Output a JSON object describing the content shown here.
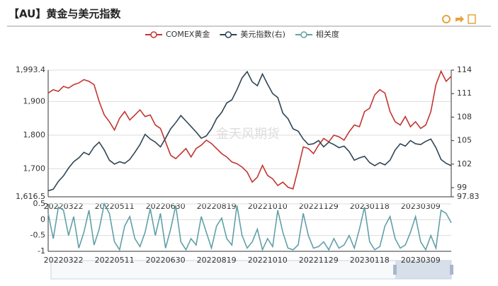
{
  "chart_data": [
    {
      "type": "line",
      "title": "【AU】黄金与美元指数",
      "watermark": "金天风期货",
      "categories": [
        null,
        null,
        null,
        "20220322",
        null,
        null,
        null,
        null,
        null,
        null,
        null,
        null,
        null,
        "20220511",
        null,
        null,
        null,
        null,
        null,
        null,
        null,
        null,
        null,
        "20220630",
        null,
        null,
        null,
        null,
        null,
        null,
        null,
        null,
        null,
        "20220819",
        null,
        null,
        null,
        null,
        null,
        null,
        null,
        null,
        null,
        "20221010",
        null,
        null,
        null,
        null,
        null,
        null,
        null,
        null,
        null,
        "20221129",
        null,
        null,
        null,
        null,
        null,
        null,
        null,
        null,
        null,
        "20230118",
        null,
        null,
        null,
        null,
        null,
        null,
        null,
        null,
        null,
        "20230309",
        null,
        null,
        null,
        null,
        null,
        null
      ],
      "ylim": [
        1616.5,
        1993.4
      ],
      "yticks": [
        {
          "value": 1616.5,
          "label": "1,616.5"
        },
        {
          "value": 1700,
          "label": "1,700"
        },
        {
          "value": 1800,
          "label": "1,800"
        },
        {
          "value": 1900,
          "label": "1,900"
        },
        {
          "value": 1993.4,
          "label": "1,993.4"
        }
      ],
      "y2lim": [
        97.83,
        114
      ],
      "y2ticks": [
        97.83,
        99,
        102,
        105,
        108,
        111,
        114
      ],
      "grid": true,
      "series": [
        {
          "name": "COMEX黄金",
          "color": "#c23531",
          "values": [
            1925,
            1935,
            1930,
            1945,
            1940,
            1950,
            1955,
            1965,
            1960,
            1950,
            1900,
            1860,
            1840,
            1815,
            1850,
            1870,
            1845,
            1860,
            1875,
            1855,
            1860,
            1830,
            1820,
            1780,
            1740,
            1730,
            1745,
            1760,
            1735,
            1760,
            1770,
            1785,
            1775,
            1760,
            1745,
            1735,
            1720,
            1715,
            1705,
            1690,
            1660,
            1675,
            1710,
            1680,
            1670,
            1650,
            1660,
            1645,
            1640,
            1700,
            1765,
            1760,
            1745,
            1770,
            1790,
            1780,
            1800,
            1795,
            1785,
            1810,
            1830,
            1825,
            1870,
            1880,
            1920,
            1935,
            1925,
            1870,
            1840,
            1830,
            1855,
            1825,
            1840,
            1820,
            1830,
            1870,
            1950,
            1990,
            1960,
            1975
          ]
        },
        {
          "name": "美元指数(右)",
          "color": "#2f4554",
          "axis": "y2",
          "values": [
            98.6,
            98.8,
            99.8,
            100.5,
            101.5,
            102.3,
            102.8,
            103.5,
            103.2,
            104.2,
            104.8,
            103.8,
            102.5,
            102,
            102.3,
            102.1,
            102.6,
            103.5,
            104.5,
            105.8,
            105.2,
            104.8,
            104.2,
            105.3,
            106.5,
            107.3,
            108.2,
            107.5,
            106.8,
            106.1,
            105.3,
            105.6,
            106.5,
            107.8,
            108.6,
            109.8,
            110.2,
            111.5,
            113,
            113.8,
            112.5,
            112,
            113.5,
            112.2,
            111,
            110.5,
            108.5,
            107.8,
            106.5,
            106.2,
            105.2,
            104.5,
            104.6,
            105,
            104.2,
            104.8,
            104.5,
            104.1,
            104.3,
            103.6,
            102.5,
            102.8,
            103,
            102.2,
            101.8,
            102.2,
            101.9,
            102.5,
            103.8,
            104.6,
            104.3,
            105,
            104.6,
            104.5,
            104.9,
            105.2,
            104.1,
            102.6,
            102.1,
            101.8
          ]
        }
      ]
    },
    {
      "type": "line",
      "categories": [
        null,
        null,
        null,
        "20220322",
        null,
        null,
        null,
        null,
        null,
        null,
        null,
        null,
        null,
        "20220511",
        null,
        null,
        null,
        null,
        null,
        null,
        null,
        null,
        null,
        "20220630",
        null,
        null,
        null,
        null,
        null,
        null,
        null,
        null,
        null,
        "20220819",
        null,
        null,
        null,
        null,
        null,
        null,
        null,
        null,
        null,
        "20221010",
        null,
        null,
        null,
        null,
        null,
        null,
        null,
        null,
        null,
        "20221129",
        null,
        null,
        null,
        null,
        null,
        null,
        null,
        null,
        null,
        "20230118",
        null,
        null,
        null,
        null,
        null,
        null,
        null,
        null,
        null,
        "20230309",
        null,
        null,
        null,
        null,
        null,
        null
      ],
      "ylim": [
        -1,
        0.5
      ],
      "yticks": [
        -1,
        -0.5,
        0,
        0.5
      ],
      "grid": true,
      "series": [
        {
          "name": "相关度",
          "color": "#61a0a8",
          "values": [
            0.2,
            -0.6,
            0.4,
            0.3,
            -0.5,
            0.1,
            -0.9,
            -0.4,
            0.3,
            -0.8,
            -0.3,
            0.5,
            0.2,
            -0.7,
            -0.95,
            -0.2,
            0.1,
            -0.6,
            -0.85,
            -0.4,
            0.35,
            -0.5,
            0.2,
            -0.9,
            -0.3,
            0.45,
            -0.7,
            -0.95,
            -0.6,
            -0.8,
            0.1,
            -0.4,
            -0.9,
            -0.2,
            0.05,
            -0.6,
            -0.8,
            0.45,
            -0.5,
            -0.9,
            -0.7,
            -0.3,
            -0.95,
            -0.6,
            -0.85,
            0.3,
            -0.4,
            -0.9,
            -0.95,
            -0.8,
            0.2,
            -0.5,
            -0.9,
            -0.85,
            -0.7,
            -0.95,
            -0.6,
            -0.9,
            -0.8,
            -0.5,
            -0.9,
            -0.3,
            0.4,
            -0.7,
            -0.95,
            -0.85,
            -0.2,
            0.1,
            -0.6,
            -0.9,
            -0.8,
            -0.4,
            0.1,
            -0.7,
            -0.95,
            -0.5,
            -0.9,
            0.3,
            0.2,
            -0.1
          ]
        }
      ]
    }
  ]
}
